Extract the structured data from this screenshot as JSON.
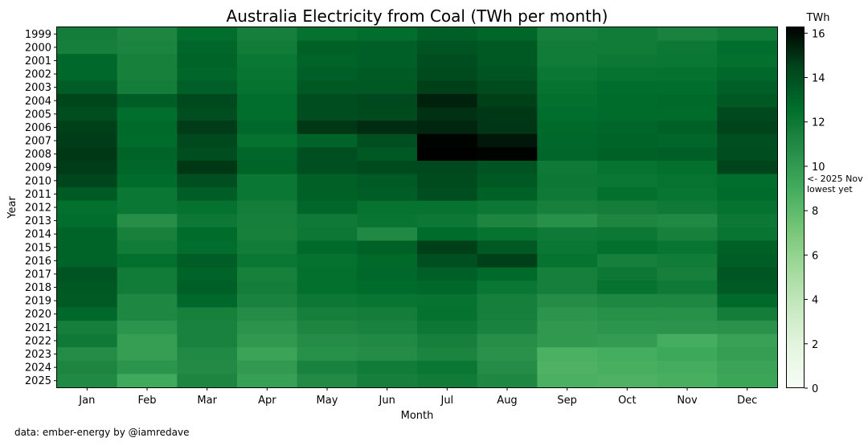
{
  "chart_data": {
    "type": "heatmap",
    "title": "Australia Electricity from Coal (TWh per month)",
    "xlabel": "Month",
    "ylabel": "Year",
    "x_categories": [
      "Jan",
      "Feb",
      "Mar",
      "Apr",
      "May",
      "Jun",
      "Jul",
      "Aug",
      "Sep",
      "Oct",
      "Nov",
      "Dec"
    ],
    "y_categories": [
      "1999",
      "2000",
      "2001",
      "2002",
      "2003",
      "2004",
      "2005",
      "2006",
      "2007",
      "2008",
      "2009",
      "2010",
      "2011",
      "2012",
      "2013",
      "2014",
      "2015",
      "2016",
      "2017",
      "2018",
      "2019",
      "2020",
      "2021",
      "2022",
      "2023",
      "2024",
      "2025"
    ],
    "values": [
      [
        11.7,
        11.2,
        12.6,
        11.6,
        12.4,
        12.6,
        13.3,
        13.0,
        11.6,
        11.8,
        11.4,
        11.8
      ],
      [
        11.6,
        11.3,
        13.0,
        11.8,
        13.2,
        13.3,
        13.8,
        13.6,
        11.8,
        11.8,
        12.0,
        12.6
      ],
      [
        12.9,
        11.5,
        13.1,
        12.1,
        13.1,
        13.3,
        14.1,
        13.6,
        11.8,
        12.0,
        12.1,
        12.5
      ],
      [
        12.9,
        11.5,
        13.0,
        12.2,
        13.3,
        13.5,
        14.2,
        13.8,
        12.1,
        12.3,
        12.4,
        12.9
      ],
      [
        13.4,
        11.7,
        13.3,
        12.3,
        13.6,
        13.6,
        14.6,
        14.2,
        12.3,
        12.6,
        12.6,
        13.3
      ],
      [
        14.4,
        13.4,
        14.3,
        12.6,
        14.1,
        14.3,
        15.4,
        14.6,
        12.5,
        12.7,
        12.8,
        13.6
      ],
      [
        14.1,
        12.6,
        14.1,
        12.6,
        14.1,
        14.2,
        15.0,
        14.8,
        12.6,
        12.7,
        12.7,
        14.3
      ],
      [
        14.6,
        12.8,
        14.7,
        12.9,
        14.8,
        15.1,
        15.3,
        14.9,
        12.8,
        13.0,
        13.2,
        14.5
      ],
      [
        14.7,
        12.7,
        14.3,
        12.4,
        13.1,
        14.0,
        16.2,
        15.7,
        12.9,
        13.1,
        13.0,
        14.0
      ],
      [
        14.8,
        13.1,
        14.1,
        13.0,
        14.0,
        13.6,
        16.3,
        16.2,
        13.0,
        13.2,
        13.3,
        14.1
      ],
      [
        14.7,
        13.0,
        14.8,
        13.1,
        14.0,
        14.2,
        14.3,
        13.8,
        11.9,
        12.3,
        12.5,
        14.5
      ],
      [
        14.4,
        12.7,
        14.0,
        12.1,
        13.2,
        13.5,
        14.2,
        13.6,
        12.0,
        12.1,
        12.3,
        12.6
      ],
      [
        13.5,
        12.1,
        13.4,
        12.1,
        13.2,
        13.4,
        14.1,
        13.2,
        11.9,
        12.5,
        12.2,
        12.7
      ],
      [
        12.5,
        12.1,
        12.4,
        11.7,
        13.0,
        12.3,
        12.3,
        12.0,
        11.5,
        11.7,
        11.9,
        12.4
      ],
      [
        12.6,
        10.7,
        12.0,
        11.6,
        11.9,
        12.2,
        12.0,
        11.2,
        10.6,
        11.2,
        11.0,
        12.0
      ],
      [
        13.1,
        11.5,
        12.7,
        11.5,
        12.0,
        11.0,
        12.7,
        12.3,
        11.9,
        12.0,
        11.5,
        12.2
      ],
      [
        13.1,
        11.8,
        12.6,
        11.8,
        12.8,
        13.2,
        14.6,
        13.6,
        12.1,
        12.5,
        12.2,
        13.2
      ],
      [
        13.1,
        12.5,
        13.4,
        12.1,
        12.4,
        12.8,
        14.0,
        14.6,
        12.3,
        11.6,
        11.8,
        13.4
      ],
      [
        13.8,
        11.8,
        13.1,
        11.5,
        12.5,
        12.9,
        13.3,
        12.8,
        11.6,
        12.0,
        11.6,
        13.7
      ],
      [
        13.6,
        11.8,
        13.3,
        11.7,
        12.5,
        12.7,
        12.9,
        12.1,
        11.6,
        12.3,
        11.9,
        13.5
      ],
      [
        13.5,
        11.1,
        12.9,
        11.4,
        12.0,
        12.2,
        12.3,
        11.6,
        10.8,
        11.1,
        11.1,
        12.8
      ],
      [
        12.9,
        11.1,
        11.5,
        10.8,
        11.6,
        11.7,
        12.4,
        11.6,
        10.3,
        10.6,
        10.6,
        11.7
      ],
      [
        11.6,
        10.3,
        11.4,
        10.4,
        11.2,
        11.4,
        12.0,
        11.4,
        10.1,
        10.3,
        10.4,
        10.5
      ],
      [
        11.9,
        9.8,
        11.4,
        10.1,
        10.8,
        11.0,
        11.6,
        10.7,
        10.1,
        9.9,
        8.9,
        9.6
      ],
      [
        10.8,
        9.8,
        11.0,
        9.5,
        10.6,
        10.8,
        11.3,
        10.5,
        8.7,
        8.9,
        9.3,
        9.8
      ],
      [
        11.2,
        10.3,
        10.9,
        10.0,
        11.4,
        11.8,
        12.1,
        10.8,
        8.6,
        8.8,
        9.0,
        9.5
      ],
      [
        11.0,
        9.1,
        11.2,
        9.7,
        10.9,
        11.6,
        11.8,
        11.1,
        8.7,
        8.6,
        8.8,
        9.4
      ]
    ],
    "vmin": 0,
    "vmax": 16.3,
    "colorbar": {
      "label": "TWh",
      "ticks": [
        0,
        2,
        4,
        6,
        8,
        10,
        12,
        14,
        16
      ],
      "annotation": "<- 2025 Nov lowest yet",
      "annotation_value": 8.8
    },
    "colormap": [
      "#f7fcf5",
      "#e5f5e0",
      "#c7e9c0",
      "#a1d99b",
      "#74c476",
      "#41ab5d",
      "#238b45",
      "#006d2c",
      "#00441b",
      "#000000"
    ]
  },
  "footer": {
    "source": "data: ember-energy by @iamredave"
  }
}
